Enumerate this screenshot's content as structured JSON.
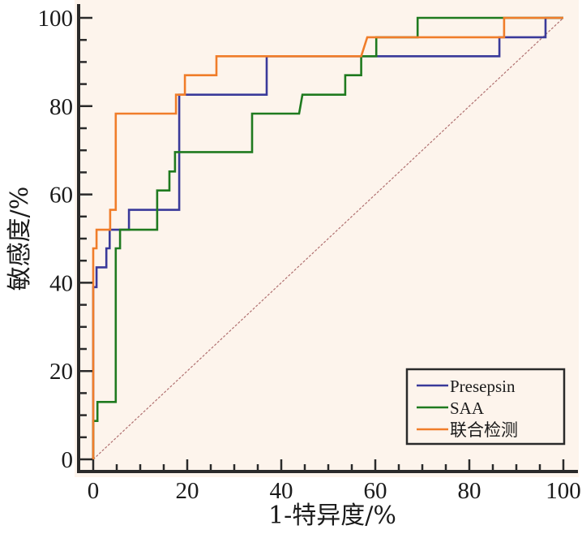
{
  "chart_data": {
    "type": "line",
    "title": "",
    "xlabel": "1-特异度/%",
    "ylabel": "敏感度/%",
    "xlim": [
      0,
      100
    ],
    "ylim": [
      0,
      100
    ],
    "x_ticks": [
      0,
      20,
      40,
      60,
      80,
      100
    ],
    "y_ticks": [
      0,
      20,
      40,
      60,
      80,
      100
    ],
    "x_tick_labels": [
      "0",
      "20",
      "40",
      "60",
      "80",
      "100"
    ],
    "y_tick_labels": [
      "0",
      "20",
      "40",
      "60",
      "80",
      "100"
    ],
    "minor_tick_step": 5,
    "grid": false,
    "legend_position": "bottom-right",
    "background_color": "#fdf4ec",
    "reference_line": {
      "name": "diagonal",
      "color": "#b07070",
      "x": [
        0,
        100
      ],
      "y": [
        0,
        100
      ]
    },
    "series": [
      {
        "name": "Presepsin",
        "color": "#3a3a9a",
        "x": [
          0,
          0,
          0.7,
          0.7,
          2.8,
          2.8,
          3.5,
          3.5,
          7.6,
          7.6,
          18.3,
          18.3,
          36.9,
          36.9,
          86.4,
          86.4,
          96.2,
          96.2,
          100
        ],
        "y": [
          0,
          39,
          39,
          43.5,
          43.5,
          47.8,
          47.8,
          52,
          52,
          56.5,
          56.5,
          82.6,
          82.6,
          91.3,
          91.3,
          95.6,
          95.6,
          100,
          100
        ]
      },
      {
        "name": "SAA",
        "color": "#1f7a1f",
        "x": [
          0,
          0,
          0.9,
          0.9,
          4.8,
          4.8,
          5.7,
          5.7,
          13.6,
          13.6,
          16.2,
          16.2,
          17.4,
          17.4,
          33.8,
          33.8,
          43.8,
          44.5,
          53.6,
          53.6,
          57,
          57,
          60.2,
          60.2,
          69,
          69,
          100
        ],
        "y": [
          0,
          8.7,
          8.7,
          13,
          13,
          47.8,
          47.8,
          52,
          52,
          60.9,
          60.9,
          65.2,
          65.2,
          69.6,
          69.6,
          78.3,
          78.3,
          82.6,
          82.6,
          87,
          87,
          91.3,
          91.3,
          95.6,
          95.6,
          100,
          100
        ]
      },
      {
        "name": "联合检测",
        "color": "#f07d2a",
        "x": [
          0,
          0,
          0.7,
          0.7,
          3.6,
          3.6,
          4.8,
          4.8,
          17.6,
          17.6,
          19.5,
          19.5,
          26.2,
          26.2,
          57,
          58.3,
          87.4,
          87.4,
          100
        ],
        "y": [
          0,
          47.8,
          47.8,
          52,
          52,
          56.5,
          56.5,
          78.3,
          78.3,
          82.6,
          82.6,
          87,
          87,
          91.3,
          91.3,
          95.6,
          95.6,
          100,
          100
        ]
      }
    ]
  }
}
